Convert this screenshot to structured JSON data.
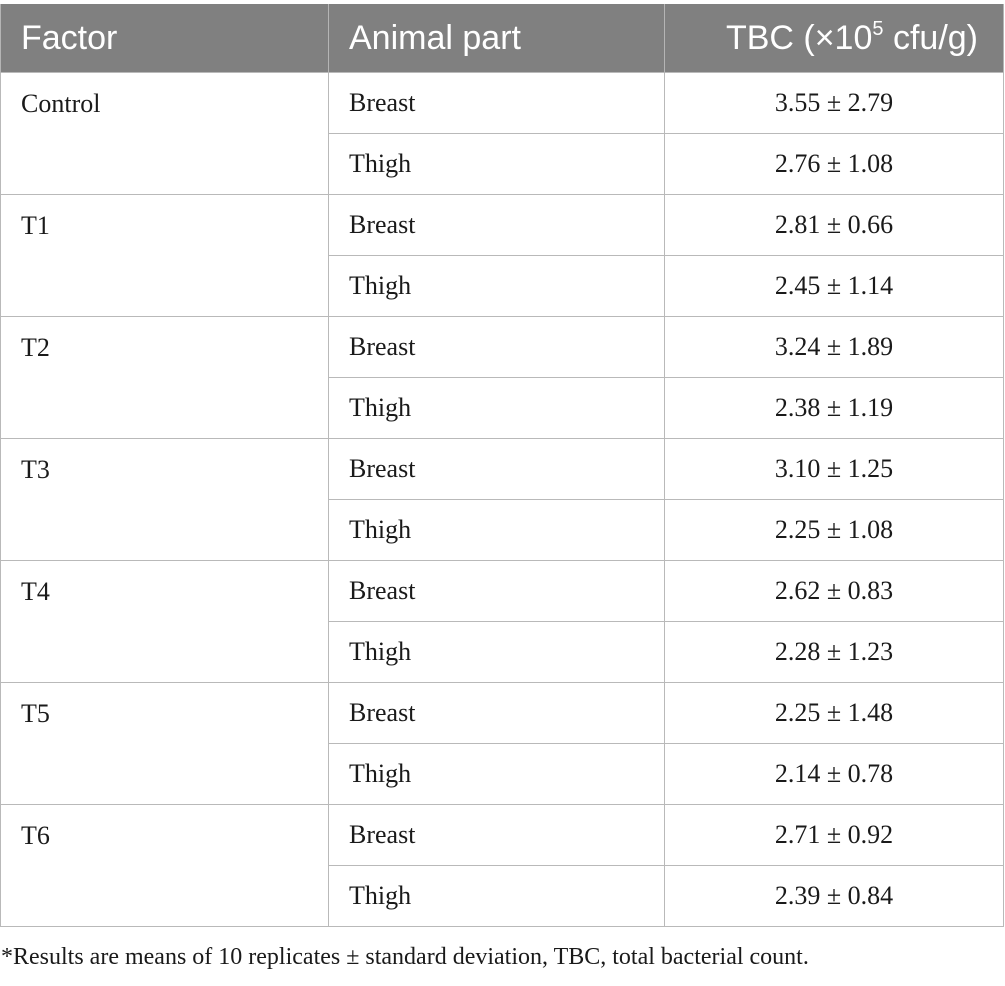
{
  "table": {
    "headers": {
      "factor": "Factor",
      "animal_part": "Animal part",
      "tbc_prefix": "TBC (×10",
      "tbc_exp": "5",
      "tbc_suffix": " cfu/g)"
    },
    "groups": [
      {
        "factor": "Control",
        "rows": [
          {
            "part": "Breast",
            "tbc": "3.55 ± 2.79"
          },
          {
            "part": "Thigh",
            "tbc": "2.76 ± 1.08"
          }
        ]
      },
      {
        "factor": "T1",
        "rows": [
          {
            "part": "Breast",
            "tbc": "2.81 ± 0.66"
          },
          {
            "part": "Thigh",
            "tbc": "2.45 ± 1.14"
          }
        ]
      },
      {
        "factor": "T2",
        "rows": [
          {
            "part": "Breast",
            "tbc": "3.24 ± 1.89"
          },
          {
            "part": "Thigh",
            "tbc": "2.38 ± 1.19"
          }
        ]
      },
      {
        "factor": "T3",
        "rows": [
          {
            "part": "Breast",
            "tbc": "3.10 ± 1.25"
          },
          {
            "part": "Thigh",
            "tbc": "2.25 ± 1.08"
          }
        ]
      },
      {
        "factor": "T4",
        "rows": [
          {
            "part": "Breast",
            "tbc": "2.62 ± 0.83"
          },
          {
            "part": "Thigh",
            "tbc": "2.28 ± 1.23"
          }
        ]
      },
      {
        "factor": "T5",
        "rows": [
          {
            "part": "Breast",
            "tbc": "2.25 ± 1.48"
          },
          {
            "part": "Thigh",
            "tbc": "2.14 ± 0.78"
          }
        ]
      },
      {
        "factor": "T6",
        "rows": [
          {
            "part": "Breast",
            "tbc": "2.71 ± 0.92"
          },
          {
            "part": "Thigh",
            "tbc": "2.39 ± 0.84"
          }
        ]
      }
    ]
  },
  "footnote": "*Results are means of 10 replicates ± standard deviation, TBC, total bacterial count.",
  "colors": {
    "header_bg": "#808080",
    "header_text": "#ffffff",
    "grid": "#b9b9b9"
  }
}
